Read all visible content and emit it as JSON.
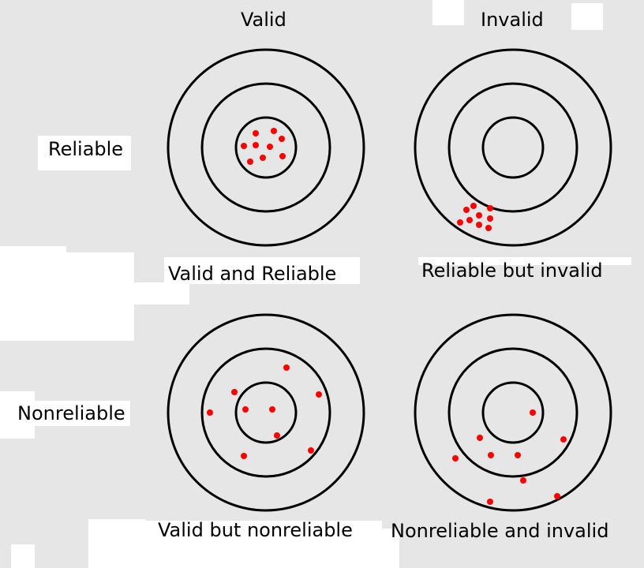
{
  "column_headers": {
    "valid": "Valid",
    "invalid": "Invalid"
  },
  "row_labels": {
    "reliable": "Reliable",
    "nonreliable": "Nonreliable"
  },
  "captions": {
    "valid_reliable": "Valid and Reliable",
    "reliable_invalid": "Reliable but invalid",
    "valid_nonreliable": "Valid but nonreliable",
    "nonreliable_invalid": "Nonreliable and invalid"
  },
  "colors": {
    "rings": "#000000",
    "hits": "#ff0000",
    "background": "#e6e6e6",
    "label_bg": "#ffffff"
  }
}
